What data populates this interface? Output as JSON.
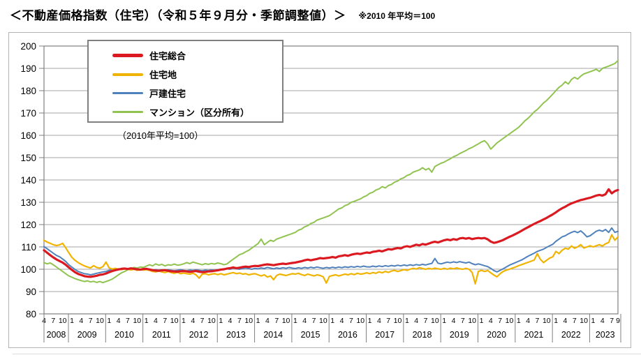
{
  "header": {
    "title": "＜不動産価格指数（住宅）（令和５年９月分・季節調整値）＞",
    "note": "※2010 年平均＝100"
  },
  "legend": {
    "items": [
      {
        "label": "住宅総合",
        "color": "#da1a20",
        "swatch_height": 5
      },
      {
        "label": "住宅地",
        "color": "#f0b400",
        "swatch_height": 4
      },
      {
        "label": "戸建住宅",
        "color": "#4f81bd",
        "swatch_height": 3
      },
      {
        "label": "マンション（区分所有）",
        "color": "#90c34f",
        "swatch_height": 3
      }
    ],
    "note": "（2010年平均=100）"
  },
  "chart_data": {
    "type": "line",
    "title": "不動産価格指数（住宅）（令和5年9月分・季節調整値）",
    "x_frequency": "monthly",
    "x_start": "2008-04",
    "x_end": "2023-09",
    "ylim": [
      80,
      200
    ],
    "y_ticks": [
      80,
      90,
      100,
      110,
      120,
      130,
      140,
      150,
      160,
      170,
      180,
      190,
      200
    ],
    "grid": "horizontal",
    "legend_position": "top-left",
    "x_axis_years": [
      {
        "year": "2008",
        "months": [
          4,
          7,
          10
        ]
      },
      {
        "year": "2009",
        "months": [
          1,
          4,
          7,
          10
        ]
      },
      {
        "year": "2010",
        "months": [
          1,
          4,
          7,
          10
        ]
      },
      {
        "year": "2011",
        "months": [
          1,
          4,
          7,
          10
        ]
      },
      {
        "year": "2012",
        "months": [
          1,
          4,
          7,
          10
        ]
      },
      {
        "year": "2013",
        "months": [
          1,
          4,
          7,
          10
        ]
      },
      {
        "year": "2014",
        "months": [
          1,
          4,
          7,
          10
        ]
      },
      {
        "year": "2015",
        "months": [
          1,
          4,
          7,
          10
        ]
      },
      {
        "year": "2016",
        "months": [
          1,
          4,
          7,
          10
        ]
      },
      {
        "year": "2017",
        "months": [
          1,
          4,
          7,
          10
        ]
      },
      {
        "year": "2018",
        "months": [
          1,
          4,
          7,
          10
        ]
      },
      {
        "year": "2019",
        "months": [
          1,
          4,
          7,
          10
        ]
      },
      {
        "year": "2020",
        "months": [
          1,
          4,
          7,
          10
        ]
      },
      {
        "year": "2021",
        "months": [
          1,
          4,
          7,
          10
        ]
      },
      {
        "year": "2022",
        "months": [
          1,
          4,
          7,
          10
        ]
      },
      {
        "year": "2023",
        "months": [
          1,
          4,
          7,
          9
        ]
      }
    ],
    "series": [
      {
        "name": "住宅総合",
        "color": "#da1a20",
        "line_width": 3.2,
        "values": [
          108.5,
          107.4,
          106.3,
          105.3,
          104.4,
          103.7,
          103.0,
          102.0,
          100.8,
          99.7,
          98.7,
          97.9,
          97.4,
          96.9,
          96.7,
          96.6,
          96.8,
          97.1,
          97.5,
          97.7,
          98.1,
          98.7,
          99.2,
          99.6,
          99.9,
          100.2,
          100.3,
          100.1,
          100.4,
          100.2,
          100.0,
          99.8,
          100.1,
          100.2,
          99.9,
          99.6,
          99.4,
          99.3,
          99.5,
          99.6,
          99.3,
          99.1,
          99.0,
          98.9,
          99.1,
          99.2,
          99.0,
          98.8,
          99.0,
          99.2,
          98.9,
          98.7,
          98.8,
          99.0,
          99.1,
          99.3,
          99.5,
          99.8,
          100.0,
          100.3,
          100.5,
          100.8,
          100.5,
          100.7,
          101.0,
          101.2,
          101.0,
          101.3,
          101.5,
          101.4,
          101.7,
          102.0,
          102.2,
          102.0,
          101.8,
          102.1,
          102.3,
          102.5,
          102.3,
          102.6,
          102.8,
          103.0,
          103.3,
          103.6,
          104.0,
          104.3,
          104.0,
          104.3,
          104.6,
          105.0,
          104.8,
          105.0,
          105.2,
          105.5,
          105.2,
          105.8,
          106.0,
          106.3,
          106.0,
          106.5,
          106.8,
          107.0,
          106.8,
          107.2,
          107.5,
          107.3,
          107.8,
          108.0,
          108.3,
          108.0,
          108.5,
          109.0,
          108.8,
          109.2,
          109.5,
          109.3,
          110.0,
          110.3,
          110.0,
          110.5,
          111.0,
          110.7,
          111.3,
          111.0,
          111.5,
          112.0,
          112.3,
          112.0,
          112.5,
          113.0,
          113.3,
          113.0,
          113.5,
          113.2,
          113.8,
          114.0,
          113.7,
          114.0,
          113.5,
          113.8,
          114.0,
          113.8,
          114.0,
          113.4,
          112.4,
          111.8,
          112.1,
          112.6,
          113.1,
          113.8,
          114.5,
          115.1,
          115.8,
          116.5,
          117.3,
          118.1,
          118.8,
          119.6,
          120.3,
          121.0,
          121.6,
          122.3,
          123.0,
          123.8,
          124.6,
          125.5,
          126.5,
          127.3,
          128.0,
          128.8,
          129.5,
          130.0,
          130.5,
          131.0,
          131.3,
          131.7,
          132.0,
          132.5,
          133.0,
          133.3,
          133.0,
          133.6,
          135.8,
          134.0,
          135.0,
          135.5
        ]
      },
      {
        "name": "住宅地",
        "color": "#f0b400",
        "line_width": 2.2,
        "values": [
          113.0,
          112.2,
          111.6,
          111.0,
          110.6,
          110.9,
          111.6,
          109.6,
          107.4,
          105.3,
          104.0,
          103.0,
          102.2,
          101.5,
          101.0,
          100.6,
          101.6,
          100.8,
          100.5,
          101.2,
          103.2,
          100.6,
          100.1,
          100.4,
          100.0,
          99.8,
          100.2,
          100.0,
          99.7,
          100.0,
          99.5,
          99.8,
          99.6,
          99.8,
          99.5,
          99.0,
          98.8,
          99.2,
          98.8,
          98.5,
          99.0,
          98.5,
          98.2,
          98.6,
          98.0,
          98.3,
          98.0,
          97.8,
          98.2,
          97.5,
          96.0,
          97.8,
          98.0,
          97.5,
          97.8,
          98.0,
          97.6,
          98.0,
          97.5,
          97.8,
          98.2,
          98.5,
          98.0,
          98.3,
          97.8,
          98.0,
          97.5,
          97.8,
          98.0,
          97.5,
          97.0,
          97.5,
          96.5,
          97.0,
          95.3,
          97.2,
          97.8,
          97.5,
          97.2,
          97.6,
          98.0,
          97.8,
          98.2,
          97.6,
          97.2,
          97.8,
          97.4,
          97.0,
          97.5,
          97.2,
          96.6,
          93.8,
          96.8,
          97.2,
          97.5,
          97.0,
          97.4,
          97.8,
          97.5,
          98.0,
          97.6,
          98.2,
          97.8,
          98.0,
          98.4,
          98.0,
          98.5,
          98.2,
          98.8,
          98.4,
          99.0,
          98.6,
          99.2,
          99.5,
          99.0,
          99.4,
          99.8,
          99.5,
          100.0,
          100.4,
          100.1,
          100.7,
          100.3,
          100.0,
          100.4,
          100.1,
          100.5,
          100.2,
          100.0,
          100.4,
          100.0,
          100.5,
          100.2,
          100.6,
          100.2,
          100.0,
          100.4,
          100.0,
          98.5,
          93.5,
          99.0,
          99.5,
          99.0,
          99.4,
          98.4,
          97.4,
          96.6,
          98.0,
          99.0,
          99.6,
          100.0,
          100.5,
          101.0,
          101.6,
          102.1,
          102.6,
          103.1,
          103.6,
          104.1,
          107.0,
          104.4,
          103.0,
          104.0,
          105.0,
          105.6,
          108.0,
          107.0,
          108.5,
          109.4,
          109.0,
          110.4,
          109.4,
          110.0,
          111.0,
          109.5,
          110.0,
          110.5,
          110.0,
          110.5,
          111.0,
          110.4,
          111.4,
          112.0,
          115.4,
          113.0,
          114.5
        ]
      },
      {
        "name": "戸建住宅",
        "color": "#4f81bd",
        "line_width": 2.0,
        "values": [
          110.2,
          109.2,
          108.2,
          107.2,
          106.2,
          105.6,
          104.6,
          103.5,
          102.0,
          100.9,
          99.9,
          99.0,
          98.5,
          98.0,
          97.8,
          97.5,
          97.8,
          98.2,
          98.5,
          98.8,
          99.0,
          99.5,
          99.8,
          100.0,
          100.2,
          100.0,
          100.3,
          100.0,
          100.2,
          100.0,
          99.8,
          100.0,
          100.2,
          100.0,
          99.8,
          99.5,
          99.8,
          99.5,
          99.7,
          99.5,
          99.8,
          99.5,
          99.3,
          99.5,
          99.8,
          99.5,
          99.3,
          99.6,
          99.4,
          99.7,
          99.5,
          99.3,
          99.6,
          99.4,
          99.7,
          99.5,
          99.8,
          100.0,
          99.8,
          100.2,
          100.0,
          100.5,
          100.2,
          100.0,
          100.3,
          100.6,
          100.3,
          100.0,
          100.4,
          100.2,
          100.6,
          100.3,
          100.8,
          100.5,
          100.2,
          100.6,
          100.3,
          100.7,
          100.4,
          100.8,
          100.5,
          100.3,
          100.7,
          100.4,
          100.8,
          100.5,
          100.9,
          100.6,
          101.0,
          100.7,
          100.4,
          100.8,
          100.5,
          100.9,
          100.6,
          101.0,
          100.7,
          101.1,
          100.8,
          101.2,
          100.9,
          101.3,
          101.0,
          101.4,
          101.1,
          101.0,
          101.4,
          101.1,
          101.5,
          101.2,
          101.6,
          101.3,
          101.7,
          101.4,
          101.8,
          101.5,
          101.9,
          101.6,
          102.0,
          101.7,
          102.1,
          101.8,
          102.2,
          101.9,
          102.3,
          102.6,
          104.8,
          102.7,
          102.4,
          102.8,
          103.2,
          102.9,
          103.3,
          103.0,
          103.4,
          103.1,
          102.8,
          103.2,
          102.5,
          102.0,
          102.4,
          102.0,
          101.6,
          101.2,
          100.4,
          99.4,
          98.8,
          99.5,
          100.2,
          101.0,
          101.8,
          102.4,
          103.0,
          103.6,
          104.2,
          105.0,
          105.8,
          106.5,
          107.2,
          108.0,
          108.5,
          109.0,
          109.8,
          110.5,
          111.2,
          112.5,
          113.5,
          114.5,
          115.0,
          115.8,
          116.5,
          117.0,
          116.4,
          117.2,
          116.0,
          114.5,
          115.0,
          116.0,
          117.0,
          117.5,
          117.0,
          117.8,
          116.5,
          118.5,
          116.5,
          117.0
        ]
      },
      {
        "name": "マンション（区分所有）",
        "color": "#90c34f",
        "line_width": 2.0,
        "values": [
          103.0,
          102.4,
          102.8,
          102.0,
          101.0,
          100.0,
          99.0,
          98.0,
          97.0,
          96.4,
          95.8,
          95.3,
          94.9,
          94.5,
          94.8,
          94.3,
          94.6,
          94.1,
          94.5,
          94.0,
          94.5,
          95.0,
          95.6,
          96.5,
          97.5,
          98.4,
          99.0,
          99.8,
          100.3,
          100.8,
          100.5,
          101.0,
          100.8,
          101.4,
          102.0,
          101.5,
          102.4,
          101.8,
          102.2,
          101.5,
          102.0,
          101.8,
          102.3,
          101.8,
          102.0,
          102.4,
          103.0,
          102.5,
          103.2,
          102.8,
          102.4,
          102.0,
          102.5,
          102.2,
          102.6,
          102.3,
          102.8,
          102.5,
          102.0,
          102.4,
          103.5,
          104.5,
          105.5,
          106.5,
          107.0,
          107.8,
          108.5,
          109.5,
          110.5,
          111.5,
          113.5,
          111.0,
          112.0,
          113.0,
          112.5,
          113.5,
          114.0,
          114.5,
          115.0,
          115.5,
          116.0,
          116.5,
          117.5,
          118.0,
          119.0,
          119.5,
          120.5,
          121.0,
          122.0,
          122.5,
          123.0,
          123.5,
          124.0,
          125.0,
          126.0,
          127.0,
          127.5,
          128.5,
          129.0,
          130.0,
          130.4,
          131.0,
          131.5,
          132.4,
          133.0,
          134.0,
          134.5,
          135.5,
          136.0,
          137.0,
          136.4,
          137.5,
          138.0,
          139.0,
          139.5,
          140.5,
          141.0,
          142.0,
          142.5,
          143.5,
          144.0,
          144.5,
          145.5,
          144.5,
          145.2,
          143.5,
          146.0,
          146.8,
          147.5,
          148.0,
          148.8,
          149.5,
          150.4,
          151.0,
          151.8,
          152.5,
          153.2,
          154.0,
          154.6,
          155.4,
          156.2,
          157.0,
          157.6,
          156.2,
          153.8,
          155.2,
          156.6,
          157.6,
          158.6,
          159.6,
          160.6,
          161.6,
          162.6,
          163.6,
          165.0,
          166.5,
          167.6,
          169.0,
          170.5,
          171.6,
          173.0,
          174.5,
          175.6,
          177.0,
          178.5,
          180.0,
          181.5,
          182.5,
          184.0,
          183.0,
          185.0,
          186.0,
          185.2,
          186.5,
          187.5,
          188.0,
          188.5,
          189.0,
          189.6,
          188.6,
          190.0,
          190.5,
          191.0,
          191.6,
          192.2,
          193.5
        ]
      }
    ]
  }
}
